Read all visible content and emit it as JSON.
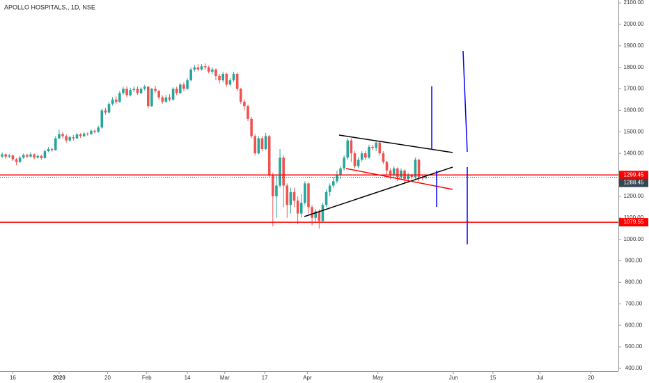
{
  "chart_data": {
    "type": "candlestick",
    "title": "APOLLO HOSPITALS., 1D, NSE",
    "up_color": "#26a69a",
    "down_color": "#ef5350",
    "open": [
      1385,
      1395,
      1385,
      1390,
      1372,
      1360,
      1380,
      1392,
      1385,
      1395,
      1380,
      1388,
      1378,
      1410,
      1420,
      1415,
      1470,
      1490,
      1480,
      1460,
      1475,
      1470,
      1488,
      1480,
      1492,
      1490,
      1505,
      1500,
      1520,
      1600,
      1590,
      1630,
      1650,
      1640,
      1680,
      1700,
      1670,
      1695,
      1700,
      1680,
      1700,
      1710,
      1620,
      1700,
      1690,
      1660,
      1640,
      1660,
      1650,
      1700,
      1680,
      1720,
      1700,
      1740,
      1790,
      1800,
      1790,
      1805,
      1800,
      1780,
      1790,
      1760,
      1740,
      1770,
      1720,
      1740,
      1770,
      1700,
      1640,
      1620,
      1560,
      1480,
      1400,
      1470,
      1420,
      1480,
      1300,
      1200,
      1250,
      1380,
      1250,
      1160,
      1220,
      1180,
      1120,
      1170,
      1260,
      1150,
      1100,
      1130,
      1085,
      1160,
      1220,
      1250,
      1270,
      1300,
      1330,
      1380,
      1460,
      1400,
      1340,
      1370,
      1400,
      1380,
      1430,
      1425,
      1450,
      1400,
      1360,
      1320,
      1300,
      1330,
      1290,
      1320,
      1280,
      1300,
      1290,
      1370,
      1290,
      1285
    ],
    "high": [
      1405,
      1400,
      1398,
      1395,
      1378,
      1388,
      1400,
      1398,
      1405,
      1400,
      1395,
      1392,
      1418,
      1430,
      1428,
      1480,
      1510,
      1500,
      1488,
      1482,
      1485,
      1495,
      1494,
      1500,
      1498,
      1512,
      1512,
      1528,
      1608,
      1612,
      1640,
      1662,
      1665,
      1690,
      1710,
      1712,
      1705,
      1712,
      1710,
      1708,
      1718,
      1712,
      1705,
      1715,
      1695,
      1670,
      1672,
      1675,
      1708,
      1710,
      1728,
      1730,
      1750,
      1800,
      1812,
      1815,
      1815,
      1818,
      1808,
      1800,
      1795,
      1770,
      1780,
      1775,
      1750,
      1780,
      1775,
      1705,
      1650,
      1625,
      1570,
      1490,
      1480,
      1480,
      1495,
      1485,
      1310,
      1300,
      1420,
      1390,
      1260,
      1240,
      1240,
      1200,
      1210,
      1270,
      1265,
      1160,
      1140,
      1140,
      1170,
      1230,
      1260,
      1290,
      1320,
      1340,
      1390,
      1470,
      1470,
      1410,
      1380,
      1410,
      1410,
      1440,
      1440,
      1460,
      1455,
      1410,
      1365,
      1330,
      1340,
      1335,
      1330,
      1325,
      1310,
      1305,
      1380,
      1375,
      1300,
      1295
    ],
    "low": [
      1378,
      1375,
      1378,
      1365,
      1345,
      1355,
      1375,
      1378,
      1380,
      1372,
      1375,
      1370,
      1375,
      1405,
      1408,
      1412,
      1465,
      1470,
      1450,
      1452,
      1460,
      1465,
      1472,
      1475,
      1482,
      1485,
      1492,
      1495,
      1515,
      1580,
      1585,
      1622,
      1630,
      1635,
      1672,
      1662,
      1665,
      1685,
      1672,
      1675,
      1692,
      1610,
      1615,
      1680,
      1650,
      1630,
      1635,
      1642,
      1645,
      1670,
      1675,
      1690,
      1695,
      1735,
      1780,
      1782,
      1785,
      1790,
      1772,
      1770,
      1740,
      1725,
      1730,
      1710,
      1712,
      1732,
      1690,
      1630,
      1600,
      1550,
      1470,
      1390,
      1395,
      1410,
      1415,
      1290,
      1060,
      1100,
      1240,
      1150,
      1100,
      1120,
      1150,
      1070,
      1100,
      1160,
      1120,
      1065,
      1080,
      1050,
      1080,
      1150,
      1200,
      1240,
      1260,
      1280,
      1320,
      1370,
      1360,
      1330,
      1330,
      1360,
      1370,
      1375,
      1415,
      1410,
      1390,
      1350,
      1300,
      1280,
      1290,
      1270,
      1280,
      1260,
      1270,
      1280,
      1280,
      1270,
      1275,
      1280
    ],
    "close": [
      1395,
      1385,
      1390,
      1372,
      1360,
      1380,
      1392,
      1385,
      1395,
      1380,
      1388,
      1378,
      1410,
      1420,
      1415,
      1470,
      1490,
      1480,
      1460,
      1475,
      1470,
      1488,
      1480,
      1492,
      1490,
      1505,
      1500,
      1520,
      1600,
      1590,
      1630,
      1650,
      1640,
      1680,
      1700,
      1670,
      1695,
      1700,
      1680,
      1700,
      1710,
      1620,
      1700,
      1690,
      1660,
      1640,
      1660,
      1650,
      1700,
      1680,
      1720,
      1700,
      1740,
      1790,
      1800,
      1790,
      1805,
      1800,
      1780,
      1790,
      1760,
      1740,
      1770,
      1720,
      1740,
      1770,
      1700,
      1640,
      1620,
      1560,
      1480,
      1400,
      1470,
      1420,
      1480,
      1300,
      1200,
      1250,
      1380,
      1250,
      1160,
      1220,
      1180,
      1120,
      1170,
      1260,
      1150,
      1100,
      1130,
      1085,
      1160,
      1220,
      1250,
      1270,
      1300,
      1330,
      1380,
      1460,
      1400,
      1340,
      1370,
      1400,
      1380,
      1430,
      1425,
      1450,
      1400,
      1360,
      1320,
      1300,
      1330,
      1290,
      1320,
      1280,
      1300,
      1290,
      1370,
      1290,
      1285,
      1288
    ],
    "xlim": [
      -0.6,
      173
    ],
    "xticks": [
      {
        "value": 3,
        "label": "16"
      },
      {
        "value": 16,
        "label": "2020"
      },
      {
        "value": 29.6,
        "label": "20"
      },
      {
        "value": 40.6,
        "label": "Feb"
      },
      {
        "value": 52,
        "label": "14"
      },
      {
        "value": 62.5,
        "label": "Mar"
      },
      {
        "value": 73.7,
        "label": "17"
      },
      {
        "value": 85.7,
        "label": "Apr"
      },
      {
        "value": 105.5,
        "label": "May"
      },
      {
        "value": 126.7,
        "label": "Jun"
      },
      {
        "value": 137.8,
        "label": "15"
      },
      {
        "value": 151,
        "label": "Jul"
      },
      {
        "value": 165.3,
        "label": "20"
      }
    ],
    "ylim": [
      386.8,
      2113.2
    ],
    "yticks": [
      {
        "value": 400,
        "label": "400.00"
      },
      {
        "value": 500,
        "label": "500.00"
      },
      {
        "value": 600,
        "label": "600.00"
      },
      {
        "value": 700,
        "label": "700.00"
      },
      {
        "value": 800,
        "label": "800.00"
      },
      {
        "value": 900,
        "label": "900.00"
      },
      {
        "value": 1000,
        "label": "1000.00"
      },
      {
        "value": 1100,
        "label": "1100.00"
      },
      {
        "value": 1200,
        "label": "1200.00"
      },
      {
        "value": 1300,
        "label": "1300.00"
      },
      {
        "value": 1400,
        "label": "1400.00"
      },
      {
        "value": 1500,
        "label": "1500.00"
      },
      {
        "value": 1600,
        "label": "1600.00"
      },
      {
        "value": 1700,
        "label": "1700.00"
      },
      {
        "value": 1800,
        "label": "1800.00"
      },
      {
        "value": 1900,
        "label": "1900.00"
      },
      {
        "value": 2000,
        "label": "2000.00"
      },
      {
        "value": 2100,
        "label": "2100.00"
      }
    ],
    "hlines": [
      {
        "value": 1299.45,
        "label": "1299.45",
        "color": "#ff0000"
      },
      {
        "value": 1079.55,
        "label": "1079.55",
        "color": "#ff0000"
      }
    ],
    "last_price": {
      "value": 1288.45,
      "label": "1288.45",
      "color": "#37474f"
    }
  }
}
